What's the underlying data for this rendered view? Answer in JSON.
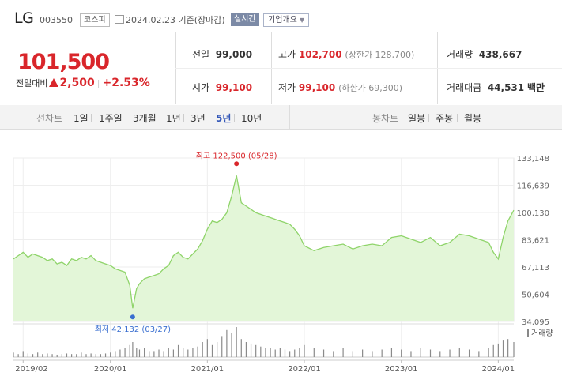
{
  "header": {
    "name": "LG",
    "code": "003550",
    "market": "코스피",
    "date": "2024.02.23",
    "basis": "기준(장마감)",
    "live_label": "실시간",
    "info_label": "기업개요"
  },
  "quote": {
    "price": "101,500",
    "change_label": "전일대비",
    "change": "2,500",
    "change_pct": "+2.53%",
    "prev_close_label": "전일",
    "prev_close": "99,000",
    "high_label": "고가",
    "high": "102,700",
    "upper_limit": "(상한가 128,700)",
    "volume_label": "거래량",
    "volume": "438,667",
    "open_label": "시가",
    "open": "99,100",
    "low_label": "저가",
    "low": "99,100",
    "lower_limit": "(하한가 69,300)",
    "value_label": "거래대금",
    "value": "44,531",
    "value_unit": "백만"
  },
  "periods": {
    "line_label": "선차트",
    "line_items": [
      "1일",
      "1주일",
      "3개월",
      "1년",
      "3년",
      "5년",
      "10년"
    ],
    "selected": "5년",
    "candle_label": "봉차트",
    "candle_items": [
      "일봉",
      "주봉",
      "월봉"
    ]
  },
  "colors": {
    "accent_red": "#d9262b",
    "line_green": "#8fd46a",
    "fill_green": "#e3f6d8",
    "low_dot_blue": "#3a6fd0",
    "selected_blue": "#3357b8"
  },
  "chart_data": {
    "type": "area",
    "x_ticks": [
      "2019/02",
      "2020/01",
      "2021/01",
      "2022/01",
      "2023/01",
      "2024/01"
    ],
    "x_tick_years": [
      2019.1,
      2020.0,
      2021.0,
      2022.0,
      2023.0,
      2024.0
    ],
    "y_ticks": [
      "133,148",
      "116,639",
      "100,130",
      "83,621",
      "67,113",
      "50,604",
      "34,095"
    ],
    "ylim": [
      34095,
      133148
    ],
    "xlim": [
      2019.0,
      2024.16
    ],
    "high_label": "최고 122,500 (05/28)",
    "low_label": "최저 42,132 (03/27)",
    "volume_label": "거래량",
    "x": [
      2019.0,
      2019.05,
      2019.1,
      2019.15,
      2019.2,
      2019.25,
      2019.3,
      2019.35,
      2019.4,
      2019.45,
      2019.5,
      2019.55,
      2019.6,
      2019.65,
      2019.7,
      2019.75,
      2019.8,
      2019.85,
      2019.9,
      2019.95,
      2020.0,
      2020.05,
      2020.1,
      2020.15,
      2020.2,
      2020.23,
      2020.27,
      2020.3,
      2020.35,
      2020.4,
      2020.45,
      2020.5,
      2020.55,
      2020.6,
      2020.65,
      2020.7,
      2020.75,
      2020.8,
      2020.85,
      2020.9,
      2020.95,
      2021.0,
      2021.05,
      2021.1,
      2021.15,
      2021.2,
      2021.25,
      2021.3,
      2021.35,
      2021.4,
      2021.45,
      2021.5,
      2021.55,
      2021.6,
      2021.65,
      2021.7,
      2021.75,
      2021.8,
      2021.85,
      2021.9,
      2021.95,
      2022.0,
      2022.1,
      2022.2,
      2022.3,
      2022.4,
      2022.5,
      2022.6,
      2022.7,
      2022.8,
      2022.9,
      2023.0,
      2023.1,
      2023.2,
      2023.3,
      2023.4,
      2023.5,
      2023.6,
      2023.7,
      2023.8,
      2023.9,
      2023.95,
      2024.0,
      2024.05,
      2024.1,
      2024.16
    ],
    "values": [
      72000,
      74000,
      76000,
      73000,
      75000,
      74000,
      73000,
      71000,
      72000,
      69000,
      70000,
      68000,
      72000,
      71000,
      73000,
      72000,
      74000,
      71000,
      70000,
      69000,
      68000,
      66000,
      65000,
      64000,
      56000,
      42132,
      54000,
      57000,
      60000,
      61000,
      62000,
      63000,
      66000,
      68000,
      74000,
      76000,
      73000,
      72000,
      75000,
      78000,
      83000,
      90000,
      95000,
      94000,
      96000,
      100000,
      110000,
      122500,
      106000,
      104000,
      102000,
      100000,
      99000,
      98000,
      97000,
      96000,
      95000,
      94000,
      93000,
      90000,
      86000,
      80000,
      77000,
      79000,
      80000,
      81000,
      78000,
      80000,
      81000,
      80000,
      85000,
      86000,
      84000,
      82000,
      85000,
      80000,
      82000,
      87000,
      86000,
      84000,
      82000,
      76000,
      72000,
      85000,
      95000,
      101500
    ],
    "volume_rel": [
      0.15,
      0.1,
      0.2,
      0.12,
      0.1,
      0.15,
      0.1,
      0.12,
      0.1,
      0.08,
      0.1,
      0.12,
      0.1,
      0.1,
      0.15,
      0.1,
      0.12,
      0.1,
      0.1,
      0.12,
      0.15,
      0.2,
      0.25,
      0.3,
      0.4,
      0.5,
      0.3,
      0.25,
      0.3,
      0.2,
      0.2,
      0.25,
      0.2,
      0.3,
      0.25,
      0.4,
      0.3,
      0.25,
      0.3,
      0.35,
      0.5,
      0.6,
      0.4,
      0.5,
      0.7,
      0.9,
      0.8,
      1.0,
      0.6,
      0.5,
      0.45,
      0.4,
      0.35,
      0.3,
      0.3,
      0.25,
      0.3,
      0.25,
      0.2,
      0.25,
      0.3,
      0.4,
      0.3,
      0.25,
      0.2,
      0.3,
      0.2,
      0.25,
      0.2,
      0.25,
      0.3,
      0.25,
      0.2,
      0.3,
      0.25,
      0.2,
      0.25,
      0.3,
      0.25,
      0.2,
      0.3,
      0.4,
      0.45,
      0.55,
      0.6,
      0.5
    ]
  }
}
